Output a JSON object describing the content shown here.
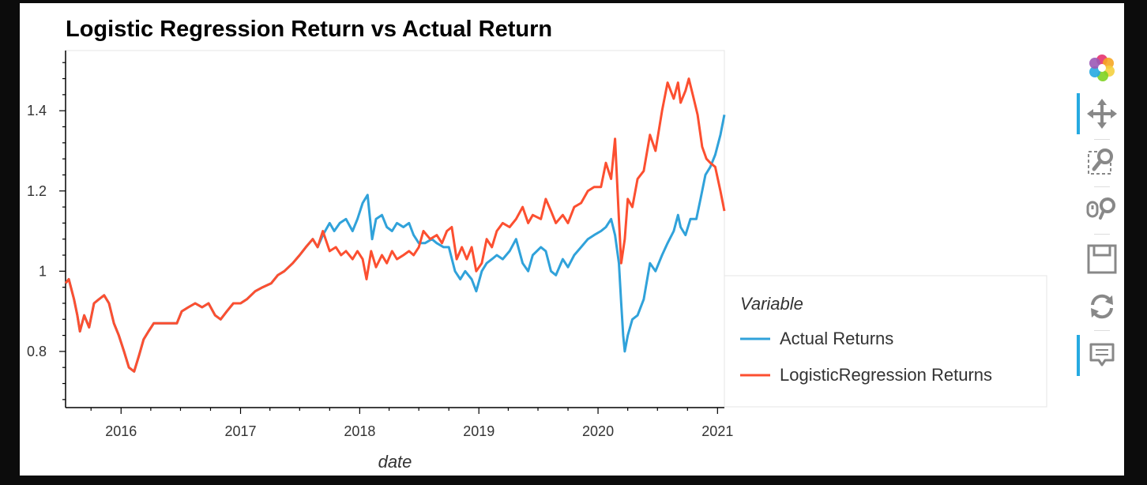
{
  "colors": {
    "actual": "#30a2da",
    "logistic": "#fc4f30",
    "toolbar_active": "#26aae1"
  },
  "toolbar": {
    "items": [
      {
        "icon": "bokeh-logo-icon",
        "active": false
      },
      {
        "icon": "pan-icon",
        "active": true
      },
      {
        "icon": "box-zoom-icon",
        "active": false
      },
      {
        "icon": "wheel-zoom-icon",
        "active": false
      },
      {
        "icon": "save-icon",
        "active": false
      },
      {
        "icon": "reset-icon",
        "active": false
      },
      {
        "icon": "hover-icon",
        "active": true
      }
    ]
  },
  "chart_data": {
    "type": "line",
    "title": "Logistic Regression Return vs Actual Return",
    "xlabel": "date",
    "ylabel": "",
    "xlim": [
      "2015-07-15",
      "2021-01-22"
    ],
    "ylim": [
      0.66,
      1.55
    ],
    "x_ticks": [
      "2016",
      "2017",
      "2018",
      "2019",
      "2020",
      "2021"
    ],
    "y_ticks": [
      "0.8",
      "1",
      "1.2",
      "1.4"
    ],
    "y_tick_values": [
      0.8,
      1.0,
      1.2,
      1.4
    ],
    "grid": false,
    "legend": {
      "title": "Variable",
      "position": "right"
    },
    "series": [
      {
        "name": "Actual Returns",
        "points": [
          [
            "2015-07-15",
            0.97
          ],
          [
            "2015-07-25",
            0.98
          ],
          [
            "2015-08-10",
            0.93
          ],
          [
            "2015-08-20",
            0.89
          ],
          [
            "2015-08-28",
            0.85
          ],
          [
            "2015-09-10",
            0.89
          ],
          [
            "2015-09-25",
            0.86
          ],
          [
            "2015-10-10",
            0.92
          ],
          [
            "2015-10-25",
            0.93
          ],
          [
            "2015-11-10",
            0.94
          ],
          [
            "2015-11-25",
            0.92
          ],
          [
            "2015-12-10",
            0.87
          ],
          [
            "2015-12-25",
            0.84
          ],
          [
            "2016-01-10",
            0.8
          ],
          [
            "2016-01-25",
            0.76
          ],
          [
            "2016-02-10",
            0.75
          ],
          [
            "2016-02-25",
            0.79
          ],
          [
            "2016-03-10",
            0.83
          ],
          [
            "2016-03-25",
            0.85
          ],
          [
            "2016-04-10",
            0.87
          ],
          [
            "2016-05-01",
            0.87
          ],
          [
            "2016-06-01",
            0.87
          ],
          [
            "2016-06-20",
            0.87
          ],
          [
            "2016-07-05",
            0.9
          ],
          [
            "2016-07-25",
            0.91
          ],
          [
            "2016-08-15",
            0.92
          ],
          [
            "2016-09-05",
            0.91
          ],
          [
            "2016-09-25",
            0.92
          ],
          [
            "2016-10-15",
            0.89
          ],
          [
            "2016-11-01",
            0.88
          ],
          [
            "2016-11-20",
            0.9
          ],
          [
            "2016-12-10",
            0.92
          ],
          [
            "2017-01-01",
            0.92
          ],
          [
            "2017-01-20",
            0.93
          ],
          [
            "2017-02-15",
            0.95
          ],
          [
            "2017-03-10",
            0.96
          ],
          [
            "2017-04-05",
            0.97
          ],
          [
            "2017-04-25",
            0.99
          ],
          [
            "2017-05-15",
            1.0
          ],
          [
            "2017-06-10",
            1.02
          ],
          [
            "2017-07-01",
            1.04
          ],
          [
            "2017-07-20",
            1.06
          ],
          [
            "2017-08-10",
            1.08
          ],
          [
            "2017-08-25",
            1.06
          ],
          [
            "2017-09-10",
            1.09
          ],
          [
            "2017-10-01",
            1.12
          ],
          [
            "2017-10-15",
            1.1
          ],
          [
            "2017-11-01",
            1.12
          ],
          [
            "2017-11-20",
            1.13
          ],
          [
            "2017-12-10",
            1.1
          ],
          [
            "2017-12-25",
            1.13
          ],
          [
            "2018-01-10",
            1.17
          ],
          [
            "2018-01-25",
            1.19
          ],
          [
            "2018-02-08",
            1.08
          ],
          [
            "2018-02-20",
            1.13
          ],
          [
            "2018-03-10",
            1.14
          ],
          [
            "2018-03-25",
            1.11
          ],
          [
            "2018-04-10",
            1.1
          ],
          [
            "2018-04-25",
            1.12
          ],
          [
            "2018-05-15",
            1.11
          ],
          [
            "2018-06-01",
            1.12
          ],
          [
            "2018-06-15",
            1.09
          ],
          [
            "2018-07-01",
            1.07
          ],
          [
            "2018-07-20",
            1.07
          ],
          [
            "2018-08-10",
            1.08
          ],
          [
            "2018-08-25",
            1.07
          ],
          [
            "2018-09-15",
            1.06
          ],
          [
            "2018-10-01",
            1.06
          ],
          [
            "2018-10-20",
            1.0
          ],
          [
            "2018-11-05",
            0.98
          ],
          [
            "2018-11-20",
            1.0
          ],
          [
            "2018-12-10",
            0.98
          ],
          [
            "2018-12-24",
            0.95
          ],
          [
            "2019-01-10",
            1.0
          ],
          [
            "2019-01-25",
            1.02
          ],
          [
            "2019-02-10",
            1.03
          ],
          [
            "2019-02-25",
            1.04
          ],
          [
            "2019-03-15",
            1.03
          ],
          [
            "2019-04-05",
            1.05
          ],
          [
            "2019-04-25",
            1.08
          ],
          [
            "2019-05-15",
            1.02
          ],
          [
            "2019-06-01",
            1.0
          ],
          [
            "2019-06-15",
            1.04
          ],
          [
            "2019-07-10",
            1.06
          ],
          [
            "2019-07-25",
            1.05
          ],
          [
            "2019-08-10",
            1.0
          ],
          [
            "2019-08-25",
            0.99
          ],
          [
            "2019-09-15",
            1.03
          ],
          [
            "2019-10-01",
            1.01
          ],
          [
            "2019-10-20",
            1.04
          ],
          [
            "2019-11-10",
            1.06
          ],
          [
            "2019-12-01",
            1.08
          ],
          [
            "2019-12-20",
            1.09
          ],
          [
            "2020-01-10",
            1.1
          ],
          [
            "2020-01-25",
            1.11
          ],
          [
            "2020-02-10",
            1.13
          ],
          [
            "2020-02-22",
            1.09
          ],
          [
            "2020-03-05",
            1.02
          ],
          [
            "2020-03-12",
            0.92
          ],
          [
            "2020-03-18",
            0.84
          ],
          [
            "2020-03-23",
            0.8
          ],
          [
            "2020-04-01",
            0.84
          ],
          [
            "2020-04-15",
            0.88
          ],
          [
            "2020-05-01",
            0.89
          ],
          [
            "2020-05-20",
            0.93
          ],
          [
            "2020-06-08",
            1.02
          ],
          [
            "2020-06-25",
            1.0
          ],
          [
            "2020-07-15",
            1.04
          ],
          [
            "2020-08-01",
            1.07
          ],
          [
            "2020-08-20",
            1.1
          ],
          [
            "2020-09-02",
            1.14
          ],
          [
            "2020-09-10",
            1.11
          ],
          [
            "2020-09-25",
            1.09
          ],
          [
            "2020-10-10",
            1.13
          ],
          [
            "2020-10-28",
            1.13
          ],
          [
            "2020-11-10",
            1.18
          ],
          [
            "2020-11-25",
            1.24
          ],
          [
            "2020-12-10",
            1.26
          ],
          [
            "2020-12-25",
            1.29
          ],
          [
            "2021-01-10",
            1.34
          ],
          [
            "2021-01-22",
            1.39
          ]
        ]
      },
      {
        "name": "LogisticRegression Returns",
        "points": [
          [
            "2015-07-15",
            0.97
          ],
          [
            "2015-07-25",
            0.98
          ],
          [
            "2015-08-10",
            0.93
          ],
          [
            "2015-08-20",
            0.89
          ],
          [
            "2015-08-28",
            0.85
          ],
          [
            "2015-09-10",
            0.89
          ],
          [
            "2015-09-25",
            0.86
          ],
          [
            "2015-10-10",
            0.92
          ],
          [
            "2015-10-25",
            0.93
          ],
          [
            "2015-11-10",
            0.94
          ],
          [
            "2015-11-25",
            0.92
          ],
          [
            "2015-12-10",
            0.87
          ],
          [
            "2015-12-25",
            0.84
          ],
          [
            "2016-01-10",
            0.8
          ],
          [
            "2016-01-25",
            0.76
          ],
          [
            "2016-02-10",
            0.75
          ],
          [
            "2016-02-25",
            0.79
          ],
          [
            "2016-03-10",
            0.83
          ],
          [
            "2016-03-25",
            0.85
          ],
          [
            "2016-04-10",
            0.87
          ],
          [
            "2016-05-01",
            0.87
          ],
          [
            "2016-06-01",
            0.87
          ],
          [
            "2016-06-20",
            0.87
          ],
          [
            "2016-07-05",
            0.9
          ],
          [
            "2016-07-25",
            0.91
          ],
          [
            "2016-08-15",
            0.92
          ],
          [
            "2016-09-05",
            0.91
          ],
          [
            "2016-09-25",
            0.92
          ],
          [
            "2016-10-15",
            0.89
          ],
          [
            "2016-11-01",
            0.88
          ],
          [
            "2016-11-20",
            0.9
          ],
          [
            "2016-12-10",
            0.92
          ],
          [
            "2017-01-01",
            0.92
          ],
          [
            "2017-01-20",
            0.93
          ],
          [
            "2017-02-15",
            0.95
          ],
          [
            "2017-03-10",
            0.96
          ],
          [
            "2017-04-05",
            0.97
          ],
          [
            "2017-04-25",
            0.99
          ],
          [
            "2017-05-15",
            1.0
          ],
          [
            "2017-06-10",
            1.02
          ],
          [
            "2017-07-01",
            1.04
          ],
          [
            "2017-07-20",
            1.06
          ],
          [
            "2017-08-10",
            1.08
          ],
          [
            "2017-08-25",
            1.06
          ],
          [
            "2017-09-10",
            1.1
          ],
          [
            "2017-10-01",
            1.05
          ],
          [
            "2017-10-20",
            1.06
          ],
          [
            "2017-11-05",
            1.04
          ],
          [
            "2017-11-20",
            1.05
          ],
          [
            "2017-12-10",
            1.03
          ],
          [
            "2017-12-25",
            1.05
          ],
          [
            "2018-01-10",
            1.03
          ],
          [
            "2018-01-22",
            0.98
          ],
          [
            "2018-02-05",
            1.05
          ],
          [
            "2018-02-20",
            1.01
          ],
          [
            "2018-03-10",
            1.04
          ],
          [
            "2018-03-25",
            1.02
          ],
          [
            "2018-04-10",
            1.05
          ],
          [
            "2018-04-25",
            1.03
          ],
          [
            "2018-05-15",
            1.04
          ],
          [
            "2018-06-01",
            1.05
          ],
          [
            "2018-06-15",
            1.04
          ],
          [
            "2018-07-01",
            1.06
          ],
          [
            "2018-07-15",
            1.1
          ],
          [
            "2018-08-05",
            1.08
          ],
          [
            "2018-08-25",
            1.09
          ],
          [
            "2018-09-10",
            1.07
          ],
          [
            "2018-09-25",
            1.1
          ],
          [
            "2018-10-10",
            1.11
          ],
          [
            "2018-10-25",
            1.03
          ],
          [
            "2018-11-10",
            1.06
          ],
          [
            "2018-11-25",
            1.03
          ],
          [
            "2018-12-10",
            1.06
          ],
          [
            "2018-12-24",
            1.0
          ],
          [
            "2019-01-10",
            1.02
          ],
          [
            "2019-01-25",
            1.08
          ],
          [
            "2019-02-10",
            1.06
          ],
          [
            "2019-02-25",
            1.1
          ],
          [
            "2019-03-15",
            1.12
          ],
          [
            "2019-04-05",
            1.11
          ],
          [
            "2019-04-25",
            1.13
          ],
          [
            "2019-05-15",
            1.16
          ],
          [
            "2019-06-01",
            1.12
          ],
          [
            "2019-06-15",
            1.14
          ],
          [
            "2019-07-10",
            1.13
          ],
          [
            "2019-07-25",
            1.18
          ],
          [
            "2019-08-10",
            1.15
          ],
          [
            "2019-08-25",
            1.12
          ],
          [
            "2019-09-15",
            1.14
          ],
          [
            "2019-10-01",
            1.12
          ],
          [
            "2019-10-20",
            1.16
          ],
          [
            "2019-11-10",
            1.17
          ],
          [
            "2019-12-01",
            1.2
          ],
          [
            "2019-12-20",
            1.21
          ],
          [
            "2020-01-10",
            1.21
          ],
          [
            "2020-01-25",
            1.27
          ],
          [
            "2020-02-10",
            1.23
          ],
          [
            "2020-02-22",
            1.33
          ],
          [
            "2020-03-05",
            1.13
          ],
          [
            "2020-03-12",
            1.02
          ],
          [
            "2020-03-23",
            1.08
          ],
          [
            "2020-04-01",
            1.18
          ],
          [
            "2020-04-15",
            1.16
          ],
          [
            "2020-05-01",
            1.23
          ],
          [
            "2020-05-20",
            1.25
          ],
          [
            "2020-06-08",
            1.34
          ],
          [
            "2020-06-25",
            1.3
          ],
          [
            "2020-07-15",
            1.4
          ],
          [
            "2020-08-01",
            1.47
          ],
          [
            "2020-08-20",
            1.43
          ],
          [
            "2020-09-02",
            1.47
          ],
          [
            "2020-09-10",
            1.42
          ],
          [
            "2020-09-25",
            1.45
          ],
          [
            "2020-10-05",
            1.48
          ],
          [
            "2020-10-20",
            1.43
          ],
          [
            "2020-11-01",
            1.39
          ],
          [
            "2020-11-15",
            1.31
          ],
          [
            "2020-11-28",
            1.28
          ],
          [
            "2020-12-10",
            1.27
          ],
          [
            "2020-12-25",
            1.26
          ],
          [
            "2021-01-10",
            1.2
          ],
          [
            "2021-01-22",
            1.15
          ]
        ]
      }
    ]
  }
}
